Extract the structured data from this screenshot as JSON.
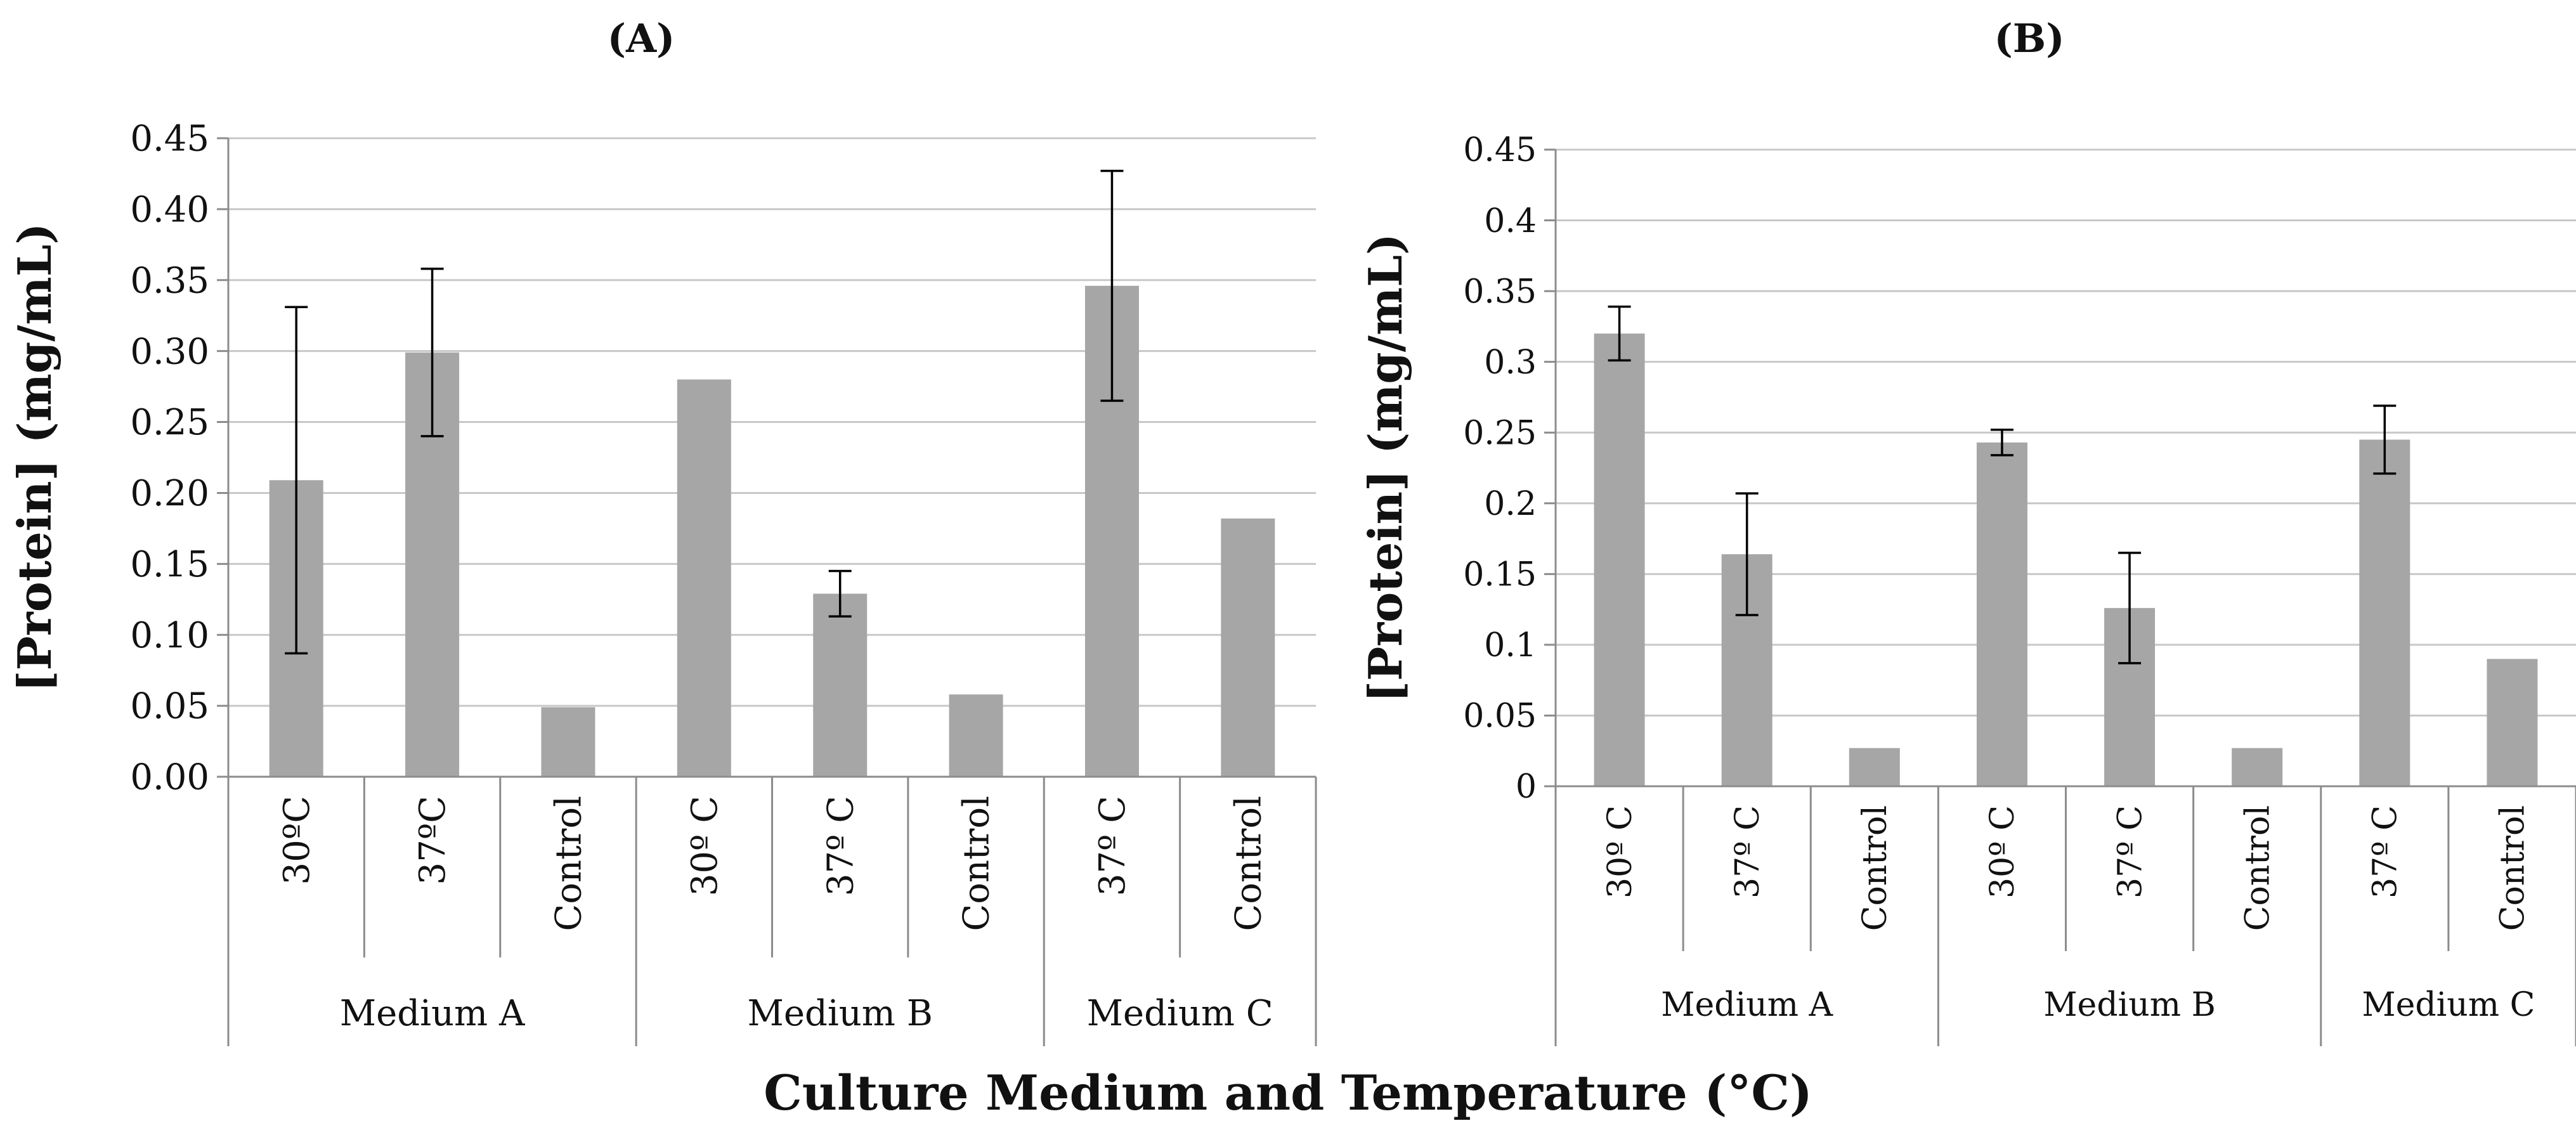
{
  "figure": {
    "panel_a_label": "(A)",
    "panel_b_label": "(B)",
    "xlabel": "Culture Medium and Temperature (°C)"
  },
  "colors": {
    "bar": "#a6a6a6",
    "grid": "#c8c8c8",
    "axis": "#8c8c8c",
    "text": "#111111"
  },
  "chart_data": [
    {
      "type": "bar",
      "panel": "(A)",
      "ylabel": "[Protein] (mg/mL)",
      "ylim": [
        0,
        0.45
      ],
      "yticks": [
        0.0,
        0.05,
        0.1,
        0.15,
        0.2,
        0.25,
        0.3,
        0.35,
        0.4,
        0.45
      ],
      "ytick_labels": [
        "0.00",
        "0.05",
        "0.10",
        "0.15",
        "0.20",
        "0.25",
        "0.30",
        "0.35",
        "0.40",
        "0.45"
      ],
      "grid": true,
      "categories": [
        "30ºC",
        "37ºC",
        "Control",
        "30º C",
        "37º C",
        "Control",
        "37º C",
        "Control"
      ],
      "groups": [
        {
          "label": "Medium A",
          "count": 3
        },
        {
          "label": "Medium B",
          "count": 3
        },
        {
          "label": "Medium C",
          "count": 2
        }
      ],
      "values": [
        0.209,
        0.299,
        0.049,
        0.28,
        0.129,
        0.058,
        0.346,
        0.182
      ],
      "errors": [
        0.122,
        0.059,
        null,
        null,
        0.016,
        null,
        0.081,
        null
      ]
    },
    {
      "type": "bar",
      "panel": "(B)",
      "ylabel": "[Protein] (mg/mL)",
      "ylim": [
        0,
        0.45
      ],
      "yticks": [
        0,
        0.05,
        0.1,
        0.15,
        0.2,
        0.25,
        0.3,
        0.35,
        0.4,
        0.45
      ],
      "ytick_labels": [
        "0",
        "0.05",
        "0.1",
        "0.15",
        "0.2",
        "0.25",
        "0.3",
        "0.35",
        "0.4",
        "0.45"
      ],
      "grid": true,
      "categories": [
        "30º C",
        "37º C",
        "Control",
        "30º C",
        "37º C",
        "Control",
        "37º C",
        "Control"
      ],
      "groups": [
        {
          "label": "Medium A",
          "count": 3
        },
        {
          "label": "Medium B",
          "count": 3
        },
        {
          "label": "Medium C",
          "count": 2
        }
      ],
      "values": [
        0.32,
        0.164,
        0.027,
        0.243,
        0.126,
        0.027,
        0.245,
        0.09
      ],
      "errors": [
        0.019,
        0.043,
        null,
        0.009,
        0.039,
        null,
        0.024,
        null
      ]
    }
  ]
}
